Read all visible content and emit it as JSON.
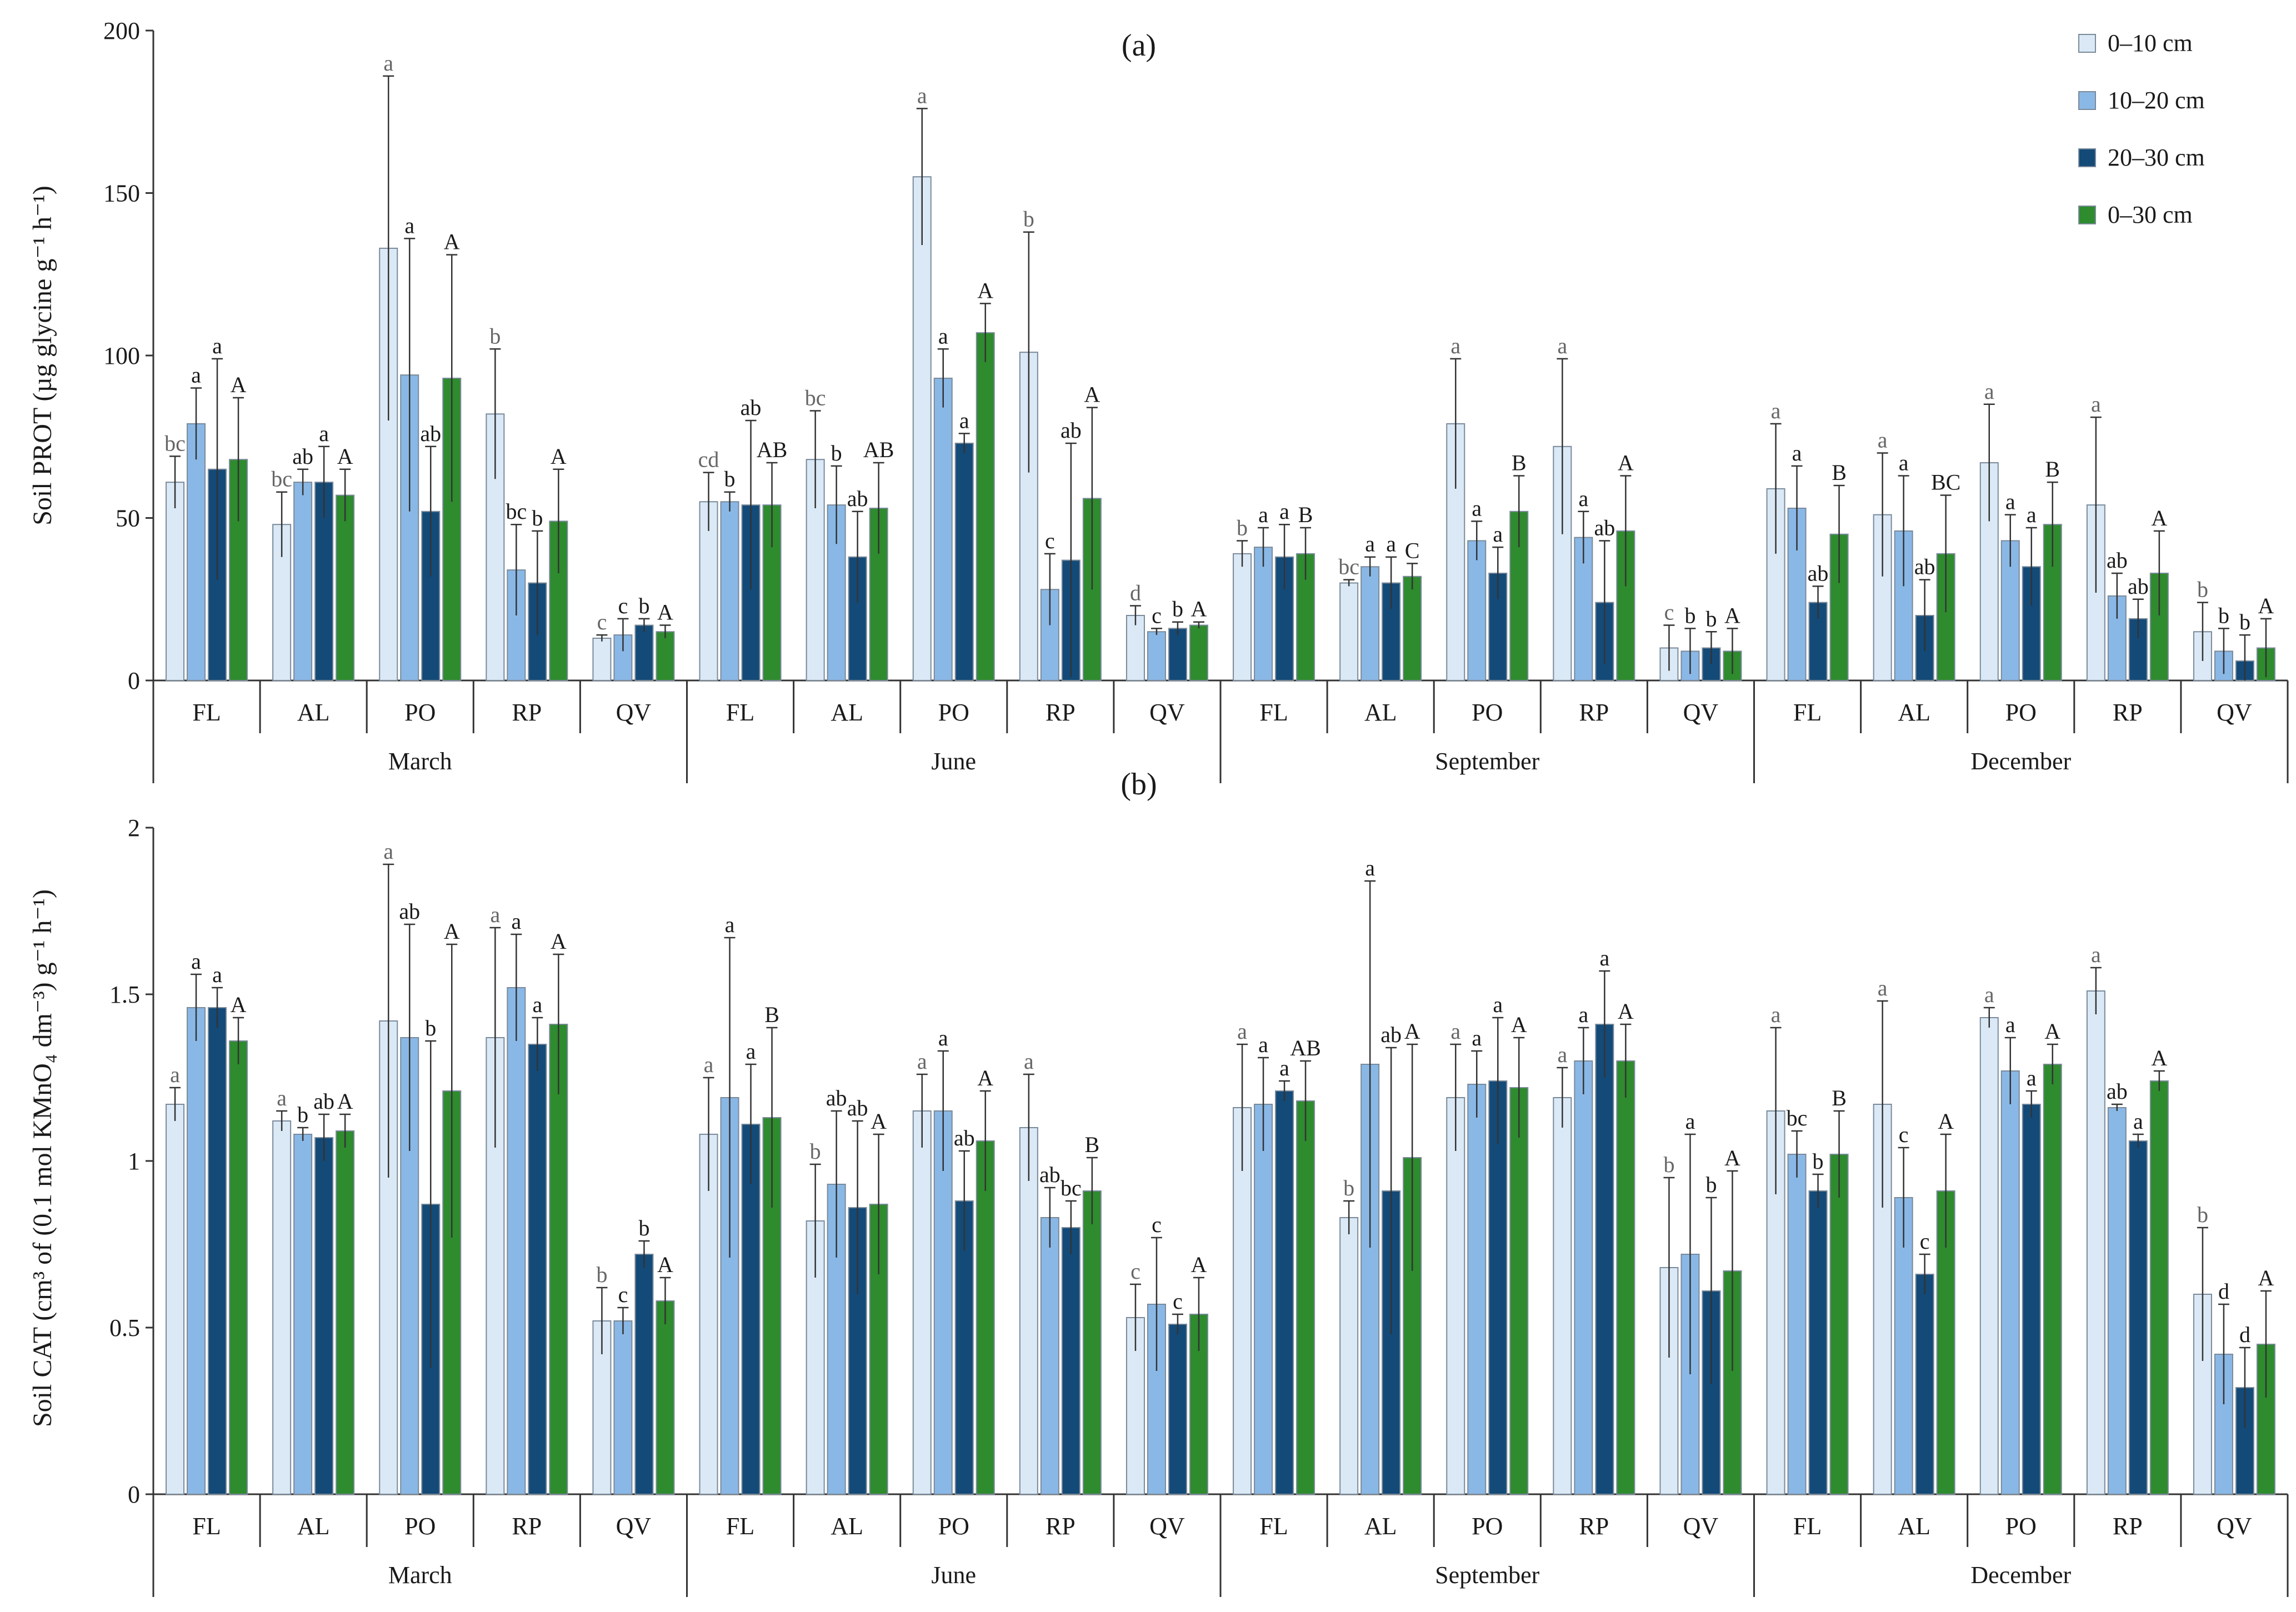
{
  "chart_data": [
    {
      "type": "bar",
      "title": "(a)",
      "ylabel": "Soil PROT (µg glycine g⁻¹ h⁻¹)",
      "ylim": [
        0,
        200
      ],
      "yticks": [
        "0",
        "50",
        "100",
        "150",
        "200"
      ],
      "months": [
        "March",
        "June",
        "September",
        "December"
      ],
      "sites": [
        "FL",
        "AL",
        "PO",
        "RP",
        "QV"
      ],
      "series_names": [
        "0–10 cm",
        "10–20 cm",
        "20–30 cm",
        "0–30 cm"
      ],
      "colors": [
        "#dbe9f6",
        "#8ab8e6",
        "#134a78",
        "#2e8b2e"
      ],
      "legend_position": "top-right",
      "values": [
        [
          [
            61,
            79,
            65,
            68
          ],
          [
            48,
            61,
            61,
            57
          ],
          [
            133,
            94,
            52,
            93
          ],
          [
            82,
            34,
            30,
            49
          ],
          [
            13,
            14,
            17,
            15
          ]
        ],
        [
          [
            55,
            55,
            54,
            54
          ],
          [
            68,
            54,
            38,
            53
          ],
          [
            155,
            93,
            73,
            107
          ],
          [
            101,
            28,
            37,
            56
          ],
          [
            20,
            15,
            16,
            17
          ]
        ],
        [
          [
            39,
            41,
            38,
            39
          ],
          [
            30,
            35,
            30,
            32
          ],
          [
            79,
            43,
            33,
            52
          ],
          [
            72,
            44,
            24,
            46
          ],
          [
            10,
            9,
            10,
            9
          ]
        ],
        [
          [
            59,
            53,
            24,
            45
          ],
          [
            51,
            46,
            20,
            39
          ],
          [
            67,
            43,
            35,
            48
          ],
          [
            54,
            26,
            19,
            33
          ],
          [
            15,
            9,
            6,
            10
          ]
        ]
      ],
      "errors": [
        [
          [
            8,
            11,
            34,
            19
          ],
          [
            10,
            4,
            11,
            8
          ],
          [
            53,
            42,
            20,
            38
          ],
          [
            20,
            14,
            16,
            16
          ],
          [
            1,
            5,
            2,
            2
          ]
        ],
        [
          [
            9,
            3,
            26,
            13
          ],
          [
            15,
            12,
            14,
            14
          ],
          [
            21,
            9,
            3,
            9
          ],
          [
            37,
            11,
            36,
            28
          ],
          [
            3,
            1,
            2,
            1
          ]
        ],
        [
          [
            4,
            6,
            10,
            8
          ],
          [
            1,
            3,
            8,
            4
          ],
          [
            20,
            6,
            8,
            11
          ],
          [
            27,
            8,
            19,
            17
          ],
          [
            7,
            7,
            5,
            7
          ]
        ],
        [
          [
            20,
            13,
            5,
            15
          ],
          [
            19,
            17,
            11,
            18
          ],
          [
            18,
            8,
            12,
            13
          ],
          [
            27,
            7,
            6,
            13
          ],
          [
            9,
            7,
            8,
            9
          ]
        ]
      ],
      "letters": [
        [
          [
            "bc",
            "a",
            "a",
            "A"
          ],
          [
            "bc",
            "ab",
            "a",
            "A"
          ],
          [
            "a",
            "a",
            "ab",
            "A"
          ],
          [
            "b",
            "bc",
            "b",
            "A"
          ],
          [
            "c",
            "c",
            "b",
            "A"
          ]
        ],
        [
          [
            "cd",
            "b",
            "ab",
            "AB"
          ],
          [
            "bc",
            "b",
            "ab",
            "AB"
          ],
          [
            "a",
            "a",
            "a",
            "A"
          ],
          [
            "b",
            "c",
            "ab",
            "A"
          ],
          [
            "d",
            "c",
            "b",
            "A"
          ]
        ],
        [
          [
            "b",
            "a",
            "a",
            "B"
          ],
          [
            "bc",
            "a",
            "a",
            "C"
          ],
          [
            "a",
            "a",
            "a",
            "B"
          ],
          [
            "a",
            "a",
            "ab",
            "A"
          ],
          [
            "c",
            "b",
            "b",
            "A"
          ]
        ],
        [
          [
            "a",
            "a",
            "ab",
            "B"
          ],
          [
            "a",
            "a",
            "ab",
            "BC"
          ],
          [
            "a",
            "a",
            "a",
            "B"
          ],
          [
            "a",
            "ab",
            "ab",
            "A"
          ],
          [
            "b",
            "b",
            "b",
            "A"
          ]
        ]
      ]
    },
    {
      "type": "bar",
      "title": "(b)",
      "ylabel": "Soil CAT (cm³ of (0.1 mol KMnO₄ dm⁻³) g⁻¹ h⁻¹)",
      "ylim": [
        0,
        2
      ],
      "yticks": [
        "0",
        "0.5",
        "1",
        "1.5",
        "2"
      ],
      "months": [
        "March",
        "June",
        "September",
        "December"
      ],
      "sites": [
        "FL",
        "AL",
        "PO",
        "RP",
        "QV"
      ],
      "series_names": [
        "0–10 cm",
        "10–20 cm",
        "20–30 cm",
        "0–30 cm"
      ],
      "colors": [
        "#dbe9f6",
        "#8ab8e6",
        "#134a78",
        "#2e8b2e"
      ],
      "values": [
        [
          [
            1.17,
            1.46,
            1.46,
            1.36
          ],
          [
            1.12,
            1.08,
            1.07,
            1.09
          ],
          [
            1.42,
            1.37,
            0.87,
            1.21
          ],
          [
            1.37,
            1.52,
            1.35,
            1.41
          ],
          [
            0.52,
            0.52,
            0.72,
            0.58
          ]
        ],
        [
          [
            1.08,
            1.19,
            1.11,
            1.13
          ],
          [
            0.82,
            0.93,
            0.86,
            0.87
          ],
          [
            1.15,
            1.15,
            0.88,
            1.06
          ],
          [
            1.1,
            0.83,
            0.8,
            0.91
          ],
          [
            0.53,
            0.57,
            0.51,
            0.54
          ]
        ],
        [
          [
            1.16,
            1.17,
            1.21,
            1.18
          ],
          [
            0.83,
            1.29,
            0.91,
            1.01
          ],
          [
            1.19,
            1.23,
            1.24,
            1.22
          ],
          [
            1.19,
            1.3,
            1.41,
            1.3
          ],
          [
            0.68,
            0.72,
            0.61,
            0.67
          ]
        ],
        [
          [
            1.15,
            1.02,
            0.91,
            1.02
          ],
          [
            1.17,
            0.89,
            0.66,
            0.91
          ],
          [
            1.43,
            1.27,
            1.17,
            1.29
          ],
          [
            1.51,
            1.16,
            1.06,
            1.24
          ],
          [
            0.6,
            0.42,
            0.32,
            0.45
          ]
        ]
      ],
      "errors": [
        [
          [
            0.05,
            0.1,
            0.06,
            0.07
          ],
          [
            0.03,
            0.02,
            0.07,
            0.05
          ],
          [
            0.47,
            0.34,
            0.49,
            0.44
          ],
          [
            0.33,
            0.16,
            0.08,
            0.21
          ],
          [
            0.1,
            0.04,
            0.04,
            0.07
          ]
        ],
        [
          [
            0.17,
            0.48,
            0.18,
            0.27
          ],
          [
            0.17,
            0.22,
            0.26,
            0.21
          ],
          [
            0.11,
            0.18,
            0.15,
            0.15
          ],
          [
            0.16,
            0.09,
            0.08,
            0.1
          ],
          [
            0.1,
            0.2,
            0.03,
            0.11
          ]
        ],
        [
          [
            0.19,
            0.14,
            0.03,
            0.12
          ],
          [
            0.05,
            0.55,
            0.43,
            0.34
          ],
          [
            0.16,
            0.1,
            0.19,
            0.15
          ],
          [
            0.09,
            0.1,
            0.16,
            0.11
          ],
          [
            0.27,
            0.36,
            0.28,
            0.3
          ]
        ],
        [
          [
            0.25,
            0.07,
            0.05,
            0.13
          ],
          [
            0.31,
            0.15,
            0.06,
            0.17
          ],
          [
            0.03,
            0.1,
            0.04,
            0.06
          ],
          [
            0.07,
            0.01,
            0.02,
            0.03
          ],
          [
            0.2,
            0.15,
            0.12,
            0.16
          ]
        ]
      ],
      "letters": [
        [
          [
            "a",
            "a",
            "a",
            "A"
          ],
          [
            "a",
            "b",
            "ab",
            "A"
          ],
          [
            "a",
            "ab",
            "b",
            "A"
          ],
          [
            "a",
            "a",
            "a",
            "A"
          ],
          [
            "b",
            "c",
            "b",
            "A"
          ]
        ],
        [
          [
            "a",
            "a",
            "a",
            "B"
          ],
          [
            "b",
            "ab",
            "ab",
            "A"
          ],
          [
            "a",
            "a",
            "ab",
            "A"
          ],
          [
            "a",
            "ab",
            "bc",
            "B"
          ],
          [
            "c",
            "c",
            "c",
            "A"
          ]
        ],
        [
          [
            "a",
            "a",
            "a",
            "AB"
          ],
          [
            "b",
            "a",
            "ab",
            "A"
          ],
          [
            "a",
            "a",
            "a",
            "A"
          ],
          [
            "a",
            "a",
            "a",
            "A"
          ],
          [
            "b",
            "a",
            "b",
            "A"
          ]
        ],
        [
          [
            "a",
            "bc",
            "b",
            "B"
          ],
          [
            "a",
            "c",
            "c",
            "A"
          ],
          [
            "a",
            "a",
            "a",
            "A"
          ],
          [
            "a",
            "ab",
            "a",
            "A"
          ],
          [
            "b",
            "d",
            "d",
            "A"
          ]
        ]
      ]
    }
  ]
}
